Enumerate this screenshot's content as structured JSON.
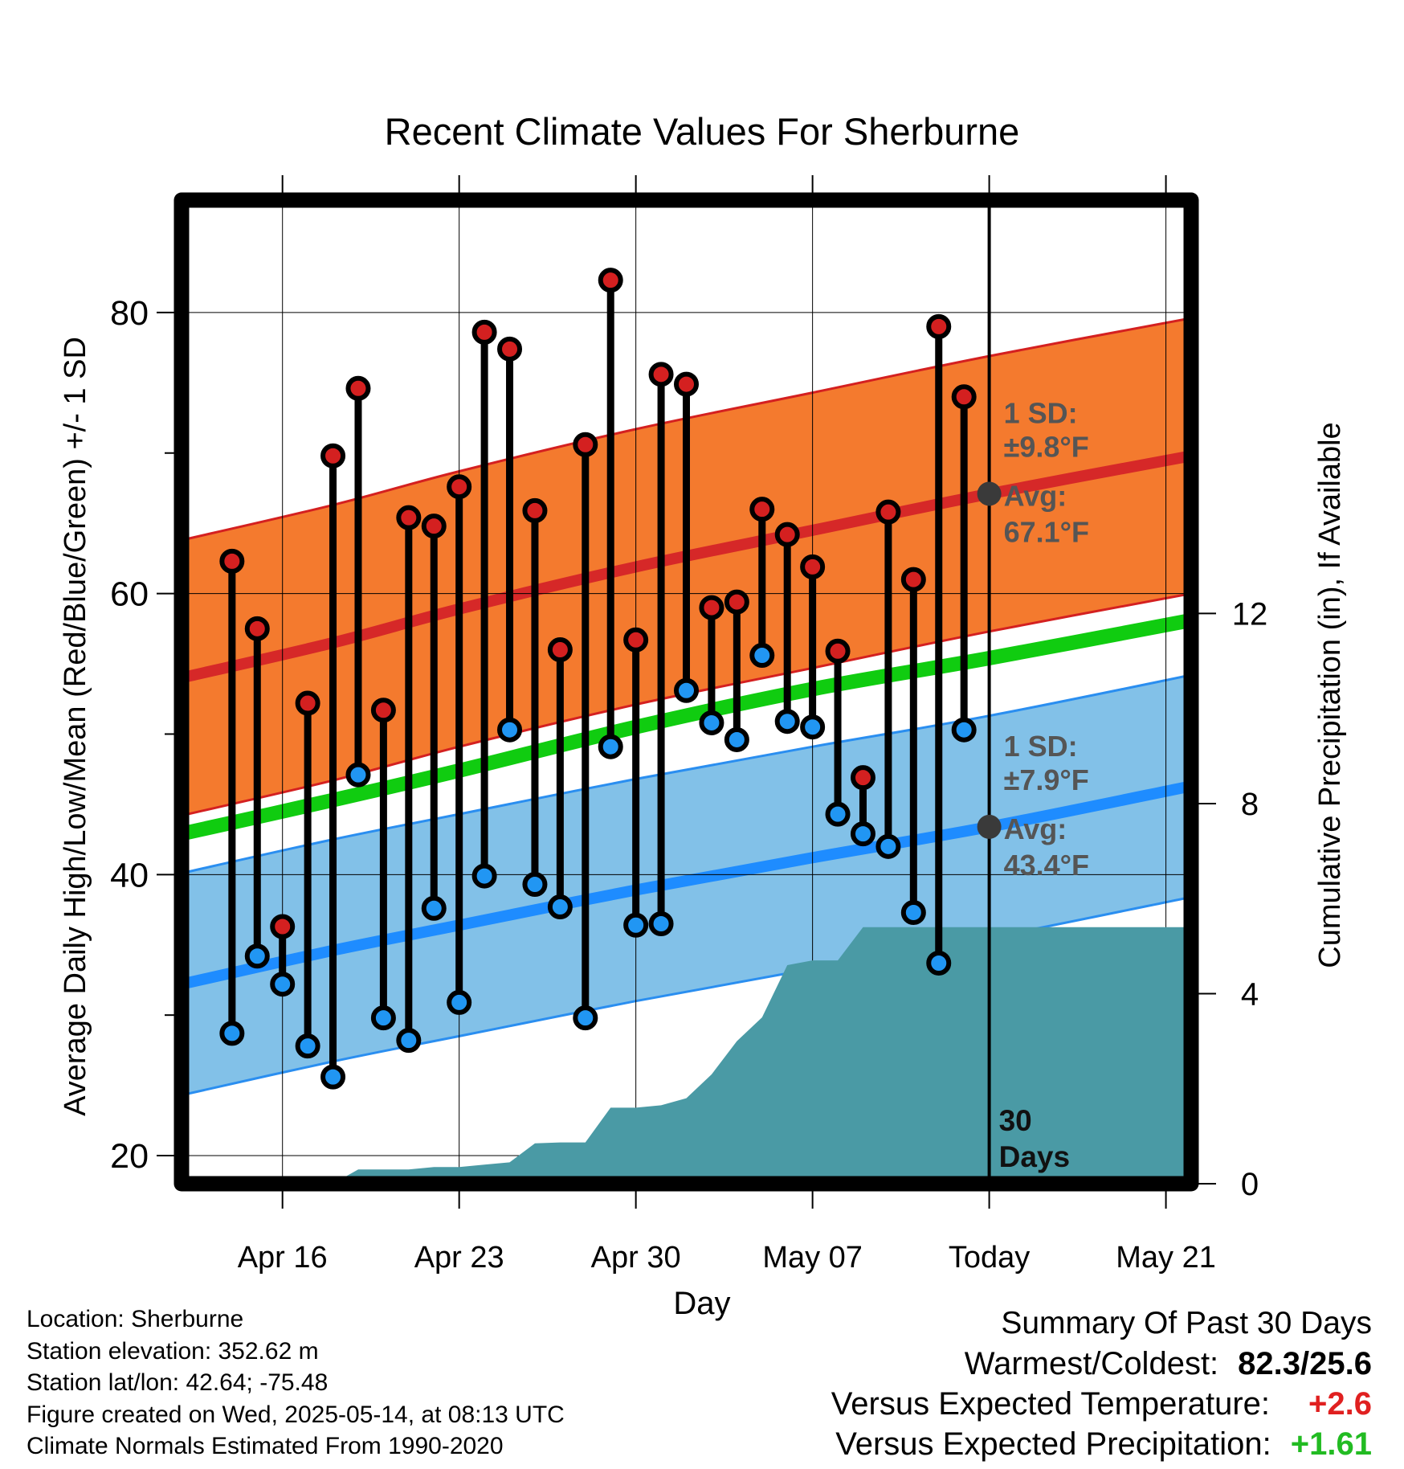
{
  "colors": {
    "high_band": "#f47a2e",
    "high_band_edge": "#d42020",
    "high_mean": "#d62828",
    "low_band": "#82c1e8",
    "low_band_edge": "#2a8ef0",
    "low_mean": "#1e8cff",
    "mean_line": "#10cc10",
    "precip_fill": "#4a9aa5",
    "high_dot": "#d42020",
    "low_dot": "#2196f3",
    "avg_marker": "#3a3a3a",
    "positive_temp": "#e02020",
    "positive_precip": "#22bb22"
  },
  "chart_data": {
    "type": "line",
    "title": "Recent Climate Values For Sherburne",
    "xlabel": "Day",
    "ylabel": "Average Daily High/Low/Mean (Red/Blue/Green) +/- 1 SD",
    "y2label": "Cumulative Precipitation (in), If Available",
    "ylim": [
      18,
      88
    ],
    "y_ticks": [
      20,
      40,
      60,
      80
    ],
    "y_minor_ticks": [
      30,
      50,
      70
    ],
    "y2lim": [
      0,
      20.7
    ],
    "y2_ticks": [
      0,
      4,
      8,
      12
    ],
    "x_start": "2025-04-12",
    "x_end": "2025-05-22",
    "x_ticks": [
      {
        "date": "2025-04-16",
        "label": "Apr 16"
      },
      {
        "date": "2025-04-23",
        "label": "Apr 23"
      },
      {
        "date": "2025-04-30",
        "label": "Apr 30"
      },
      {
        "date": "2025-05-07",
        "label": "May 07"
      },
      {
        "date": "2025-05-14",
        "label": "Today"
      },
      {
        "date": "2025-05-21",
        "label": "May 21"
      }
    ],
    "grid": true,
    "today": "2025-05-14",
    "today_label": [
      "30",
      "Days"
    ],
    "observed": [
      {
        "date": "2025-04-14",
        "high": 62.3,
        "low": 28.7
      },
      {
        "date": "2025-04-15",
        "high": 57.5,
        "low": 34.2
      },
      {
        "date": "2025-04-16",
        "high": 36.3,
        "low": 32.2
      },
      {
        "date": "2025-04-17",
        "high": 52.2,
        "low": 27.8
      },
      {
        "date": "2025-04-18",
        "high": 69.8,
        "low": 25.6
      },
      {
        "date": "2025-04-19",
        "high": 74.6,
        "low": 47.1
      },
      {
        "date": "2025-04-20",
        "high": 51.7,
        "low": 29.8
      },
      {
        "date": "2025-04-21",
        "high": 65.4,
        "low": 28.2
      },
      {
        "date": "2025-04-22",
        "high": 64.8,
        "low": 37.6
      },
      {
        "date": "2025-04-23",
        "high": 67.6,
        "low": 30.9
      },
      {
        "date": "2025-04-24",
        "high": 78.6,
        "low": 39.9
      },
      {
        "date": "2025-04-25",
        "high": 77.4,
        "low": 50.3
      },
      {
        "date": "2025-04-26",
        "high": 65.9,
        "low": 39.3
      },
      {
        "date": "2025-04-27",
        "high": 56.0,
        "low": 37.7
      },
      {
        "date": "2025-04-28",
        "high": 70.6,
        "low": 29.8
      },
      {
        "date": "2025-04-29",
        "high": 82.3,
        "low": 49.1
      },
      {
        "date": "2025-04-30",
        "high": 56.7,
        "low": 36.4
      },
      {
        "date": "2025-05-01",
        "high": 75.6,
        "low": 36.5
      },
      {
        "date": "2025-05-02",
        "high": 74.9,
        "low": 53.1
      },
      {
        "date": "2025-05-03",
        "high": 59.0,
        "low": 50.8
      },
      {
        "date": "2025-05-04",
        "high": 59.4,
        "low": 49.6
      },
      {
        "date": "2025-05-05",
        "high": 66.0,
        "low": 55.6
      },
      {
        "date": "2025-05-06",
        "high": 64.2,
        "low": 50.9
      },
      {
        "date": "2025-05-07",
        "high": 61.9,
        "low": 50.5
      },
      {
        "date": "2025-05-08",
        "high": 55.9,
        "low": 44.3
      },
      {
        "date": "2025-05-09",
        "high": 46.9,
        "low": 42.9
      },
      {
        "date": "2025-05-10",
        "high": 65.8,
        "low": 42.0
      },
      {
        "date": "2025-05-11",
        "high": 61.0,
        "low": 37.3
      },
      {
        "date": "2025-05-12",
        "high": 79.0,
        "low": 33.7
      },
      {
        "date": "2025-05-13",
        "high": 74.0,
        "low": 50.3
      }
    ],
    "normal_high": [
      {
        "date": "2025-04-12",
        "value": 54.0
      },
      {
        "date": "2025-04-18",
        "value": 56.5
      },
      {
        "date": "2025-04-23",
        "value": 58.9
      },
      {
        "date": "2025-04-30",
        "value": 61.9
      },
      {
        "date": "2025-05-07",
        "value": 64.5
      },
      {
        "date": "2025-05-14",
        "value": 67.1
      },
      {
        "date": "2025-05-22",
        "value": 69.8
      }
    ],
    "normal_high_sd": 9.8,
    "normal_mean": [
      {
        "date": "2025-04-12",
        "value": 42.9
      },
      {
        "date": "2025-04-18",
        "value": 45.3
      },
      {
        "date": "2025-04-23",
        "value": 47.4
      },
      {
        "date": "2025-04-30",
        "value": 50.5
      },
      {
        "date": "2025-05-07",
        "value": 53.2
      },
      {
        "date": "2025-05-14",
        "value": 55.4
      },
      {
        "date": "2025-05-22",
        "value": 58.1
      }
    ],
    "normal_low": [
      {
        "date": "2025-04-12",
        "value": 32.2
      },
      {
        "date": "2025-04-18",
        "value": 34.6
      },
      {
        "date": "2025-04-23",
        "value": 36.4
      },
      {
        "date": "2025-04-30",
        "value": 38.9
      },
      {
        "date": "2025-05-07",
        "value": 41.2
      },
      {
        "date": "2025-05-14",
        "value": 43.4
      },
      {
        "date": "2025-05-22",
        "value": 46.3
      }
    ],
    "normal_low_sd": 7.9,
    "high_annotation": {
      "sd": "1 SD:",
      "sd_value": "±9.8°F",
      "avg": "Avg:",
      "avg_value": "67.1°F",
      "value": 67.1
    },
    "low_annotation": {
      "sd": "1 SD:",
      "sd_value": "±7.9°F",
      "avg": "Avg:",
      "avg_value": "43.4°F",
      "value": 43.4
    },
    "precip_cumulative": [
      {
        "date": "2025-04-18",
        "value": 0.0
      },
      {
        "date": "2025-04-19",
        "value": 0.3
      },
      {
        "date": "2025-04-20",
        "value": 0.3
      },
      {
        "date": "2025-04-21",
        "value": 0.3
      },
      {
        "date": "2025-04-22",
        "value": 0.35
      },
      {
        "date": "2025-04-23",
        "value": 0.35
      },
      {
        "date": "2025-04-24",
        "value": 0.4
      },
      {
        "date": "2025-04-25",
        "value": 0.45
      },
      {
        "date": "2025-04-26",
        "value": 0.85
      },
      {
        "date": "2025-04-27",
        "value": 0.87
      },
      {
        "date": "2025-04-28",
        "value": 0.87
      },
      {
        "date": "2025-04-29",
        "value": 1.6
      },
      {
        "date": "2025-04-30",
        "value": 1.6
      },
      {
        "date": "2025-05-01",
        "value": 1.65
      },
      {
        "date": "2025-05-02",
        "value": 1.8
      },
      {
        "date": "2025-05-03",
        "value": 2.3
      },
      {
        "date": "2025-05-04",
        "value": 3.0
      },
      {
        "date": "2025-05-05",
        "value": 3.5
      },
      {
        "date": "2025-05-06",
        "value": 4.6
      },
      {
        "date": "2025-05-07",
        "value": 4.7
      },
      {
        "date": "2025-05-08",
        "value": 4.7
      },
      {
        "date": "2025-05-09",
        "value": 5.4
      },
      {
        "date": "2025-05-22",
        "value": 5.4
      }
    ]
  },
  "footer": {
    "location": "Location: Sherburne",
    "elevation": "Station elevation: 352.62 m",
    "latlon": "Station lat/lon: 42.64; -75.48",
    "created": "Figure created on Wed, 2025-05-14, at 08:13 UTC",
    "normals": "Climate Normals Estimated From 1990-2020"
  },
  "summary": {
    "heading": "Summary Of Past 30 Days",
    "warmest_coldest_label": "Warmest/Coldest:",
    "warmest_coldest_value": "82.3/25.6",
    "temp_label": "Versus Expected Temperature:",
    "temp_value": "+2.6",
    "precip_label": "Versus Expected Precipitation:",
    "precip_value": "+1.61"
  }
}
